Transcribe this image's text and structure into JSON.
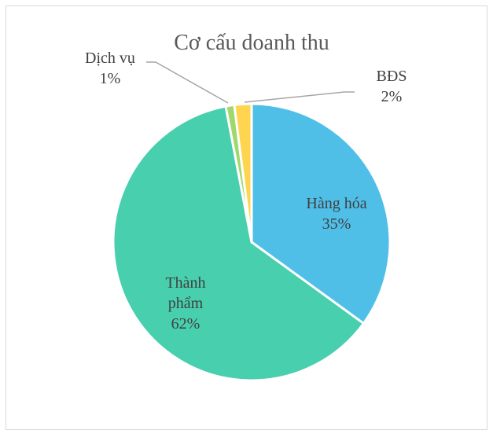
{
  "chart_data": {
    "type": "pie",
    "title": "Cơ cấu doanh thu",
    "slices": [
      {
        "name": "Hàng hóa",
        "value": 35,
        "label_lines": [
          "Hàng hóa",
          "35%"
        ],
        "color": "#4fbfe8"
      },
      {
        "name": "Thành phẩm",
        "value": 62,
        "label_lines": [
          "Thành",
          "phẩm",
          "62%"
        ],
        "color": "#48cfae"
      },
      {
        "name": "Dịch vụ",
        "value": 1,
        "label_lines": [
          "Dịch vụ",
          "1%"
        ],
        "color": "#9fd86b"
      },
      {
        "name": "BĐS",
        "value": 2,
        "label_lines": [
          "BĐS",
          "2%"
        ],
        "color": "#ffd54f"
      }
    ],
    "legend": "none"
  }
}
